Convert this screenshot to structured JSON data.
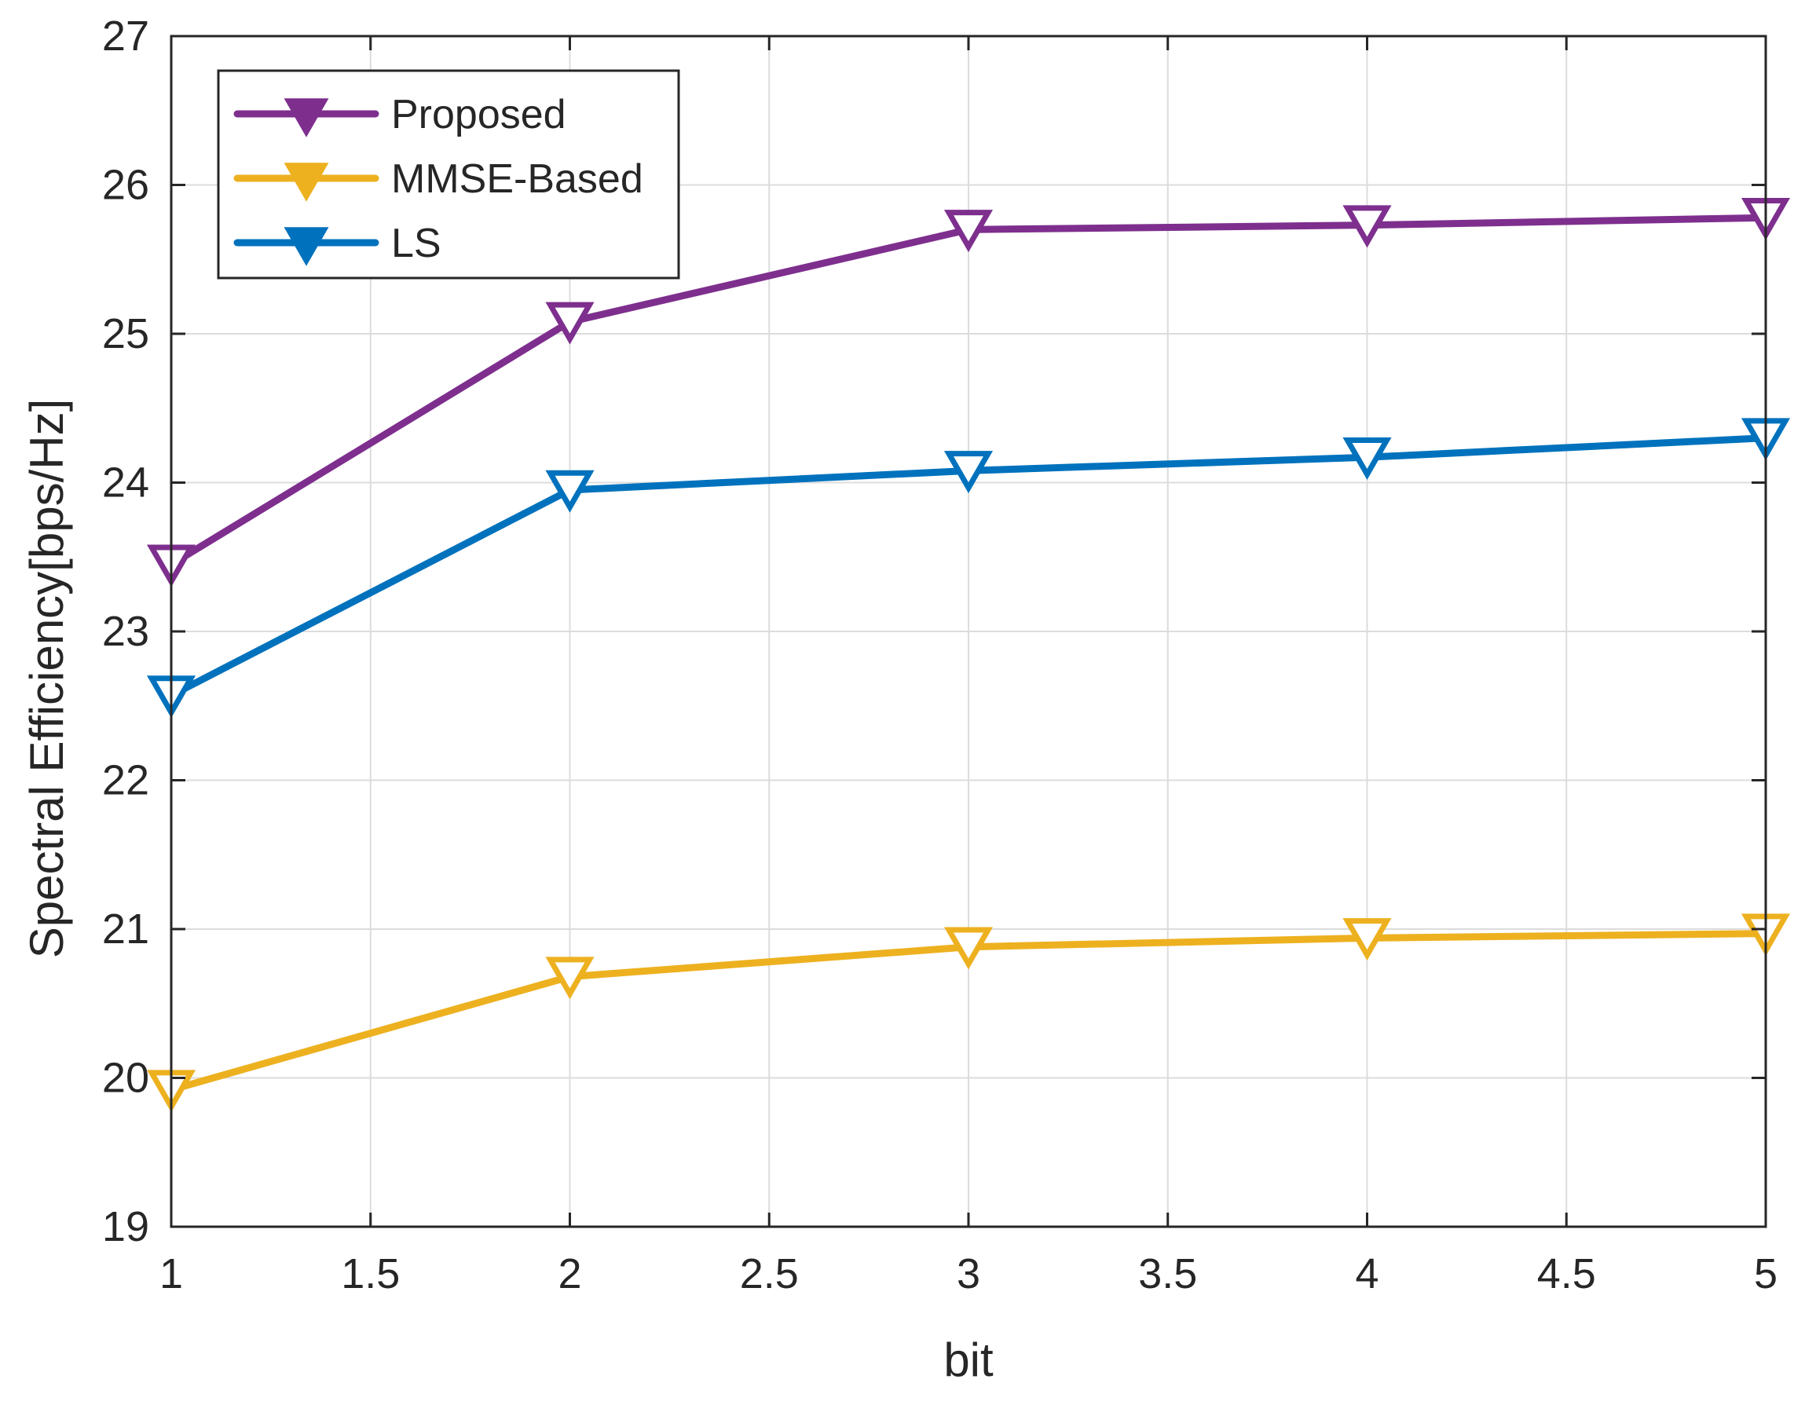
{
  "chart_data": {
    "type": "line",
    "title": "",
    "xlabel": "bit",
    "ylabel": "Spectral Efficiency[bps/Hz]",
    "x": [
      1,
      2,
      3,
      4,
      5
    ],
    "xlim": [
      1,
      5
    ],
    "ylim": [
      19,
      27
    ],
    "xticks": [
      1,
      1.5,
      2,
      2.5,
      3,
      3.5,
      4,
      4.5,
      5
    ],
    "xtick_labels": [
      "1",
      "1.5",
      "2",
      "2.5",
      "3",
      "3.5",
      "4",
      "4.5",
      "5"
    ],
    "yticks": [
      19,
      20,
      21,
      22,
      23,
      24,
      25,
      26,
      27
    ],
    "ytick_labels": [
      "19",
      "20",
      "21",
      "22",
      "23",
      "24",
      "25",
      "26",
      "27"
    ],
    "grid": true,
    "legend_location": "top-left",
    "marker": "downward-triangle",
    "series": [
      {
        "name": "Proposed",
        "color": "#7E2F8E",
        "values": [
          23.45,
          25.08,
          25.7,
          25.73,
          25.78
        ]
      },
      {
        "name": "MMSE-Based",
        "color": "#EDB120",
        "values": [
          19.92,
          20.68,
          20.88,
          20.94,
          20.97
        ]
      },
      {
        "name": "LS",
        "color": "#0072BD",
        "values": [
          22.57,
          23.95,
          24.08,
          24.17,
          24.3
        ]
      }
    ]
  }
}
